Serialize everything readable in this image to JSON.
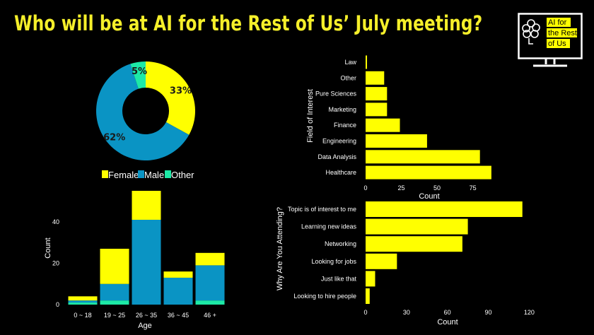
{
  "title": "Who will be at AI for the Rest of Us’ July meeting?",
  "logo": {
    "lines": [
      "AI for",
      "the Rest",
      "of Us"
    ],
    "accent": "#ffff00",
    "icon": "monitor-brain-icon"
  },
  "colors": {
    "yellow": "#ffff00",
    "blue": "#0a94c4",
    "green": "#1de9a6",
    "title": "#f5ef2a",
    "background": "#000000",
    "axis_text": "#ffffff"
  },
  "chart_data": [
    {
      "type": "pie",
      "donut": true,
      "labels": [
        "Female",
        "Male",
        "Other"
      ],
      "values": [
        33,
        62,
        5
      ],
      "value_labels": [
        "33%",
        "62%",
        "5%"
      ],
      "colors": [
        "#ffff00",
        "#0a94c4",
        "#1de9a6"
      ],
      "legend": "bottom"
    },
    {
      "type": "bar",
      "stacked": true,
      "categories": [
        "0 ~ 18",
        "19 ~ 25",
        "26 ~ 35",
        "36 ~ 45",
        "46 +"
      ],
      "series": [
        {
          "name": "Other",
          "color": "#1de9a6",
          "values": [
            1,
            2,
            0,
            0,
            2
          ]
        },
        {
          "name": "Male",
          "color": "#0a94c4",
          "values": [
            1,
            8,
            41,
            13,
            17
          ]
        },
        {
          "name": "Female",
          "color": "#ffff00",
          "values": [
            2,
            17,
            14,
            3,
            6
          ]
        }
      ],
      "xlabel": "Age",
      "ylabel": "Count",
      "yticks": [
        0,
        20,
        40
      ],
      "ylim": [
        0,
        55
      ]
    },
    {
      "type": "bar",
      "orientation": "horizontal",
      "categories": [
        "Law",
        "Other",
        "Pure Sciences",
        "Marketing",
        "Finance",
        "Engineering",
        "Data Analysis",
        "Healthcare"
      ],
      "values": [
        1,
        13,
        15,
        15,
        24,
        43,
        80,
        88
      ],
      "color": "#ffff00",
      "xlabel": "Count",
      "ylabel": "Field of Interest",
      "xticks": [
        0,
        25,
        50,
        75
      ],
      "xlim": [
        0,
        94
      ]
    },
    {
      "type": "bar",
      "orientation": "horizontal",
      "categories": [
        "Topic is of interest to me",
        "Learning new ideas",
        "Networking",
        "Looking for jobs",
        "Just like that",
        "Looking to hire people"
      ],
      "values": [
        115,
        75,
        71,
        23,
        7,
        3
      ],
      "color": "#ffff00",
      "xlabel": "Count",
      "ylabel": "Why Are You Attending?",
      "xticks": [
        0,
        30,
        60,
        90,
        120
      ],
      "xlim": [
        0,
        125
      ]
    }
  ]
}
